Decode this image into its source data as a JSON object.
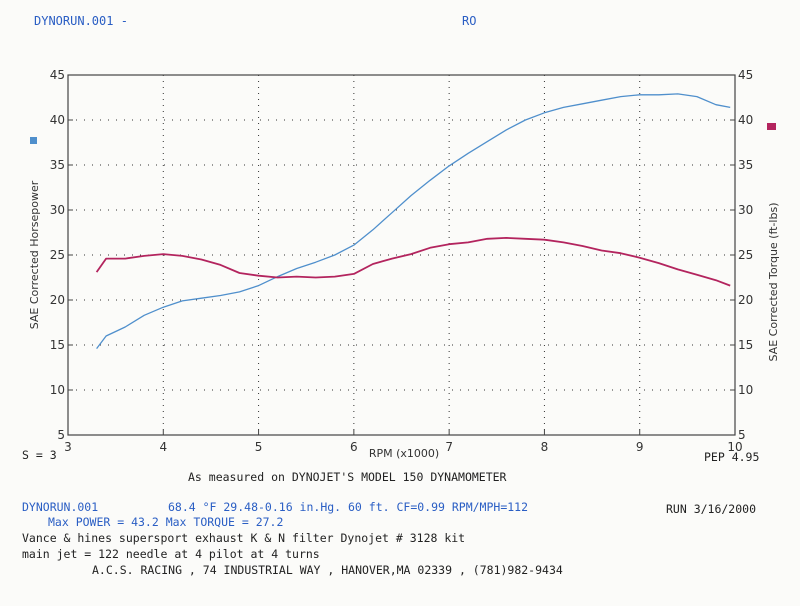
{
  "header": {
    "run_title": "DYNORUN.001 -",
    "run_code": "RO"
  },
  "chart_data": {
    "type": "line",
    "xlabel": "RPM (x1000)",
    "ylabel": "SAE Corrected Horsepower",
    "y2label": "SAE Corrected Torque (ft-lbs)",
    "subtitle": "As measured on DYNOJET'S MODEL 150 DYNAMOMETER",
    "xlim": [
      3,
      10
    ],
    "ylim": [
      5,
      45
    ],
    "y2lim": [
      5,
      45
    ],
    "x_ticks": [
      "3",
      "4",
      "5",
      "6",
      "7",
      "8",
      "9",
      "10"
    ],
    "y_ticks": [
      "5",
      "10",
      "15",
      "20",
      "25",
      "30",
      "35",
      "40",
      "45"
    ],
    "grid": true,
    "colors": {
      "power": "#4f8fcc",
      "torque": "#b3245e"
    },
    "series": [
      {
        "key": "power",
        "axis": "left",
        "points": [
          [
            3.3,
            14.6
          ],
          [
            3.4,
            16.0
          ],
          [
            3.6,
            17.0
          ],
          [
            3.8,
            18.3
          ],
          [
            4.0,
            19.2
          ],
          [
            4.2,
            19.9
          ],
          [
            4.4,
            20.2
          ],
          [
            4.6,
            20.5
          ],
          [
            4.8,
            20.9
          ],
          [
            5.0,
            21.6
          ],
          [
            5.2,
            22.6
          ],
          [
            5.4,
            23.5
          ],
          [
            5.6,
            24.2
          ],
          [
            5.8,
            25.0
          ],
          [
            6.0,
            26.1
          ],
          [
            6.2,
            27.8
          ],
          [
            6.4,
            29.7
          ],
          [
            6.6,
            31.6
          ],
          [
            6.8,
            33.3
          ],
          [
            7.0,
            34.9
          ],
          [
            7.2,
            36.3
          ],
          [
            7.4,
            37.6
          ],
          [
            7.6,
            38.9
          ],
          [
            7.8,
            40.0
          ],
          [
            8.0,
            40.8
          ],
          [
            8.2,
            41.4
          ],
          [
            8.4,
            41.8
          ],
          [
            8.6,
            42.2
          ],
          [
            8.8,
            42.6
          ],
          [
            9.0,
            42.8
          ],
          [
            9.2,
            42.8
          ],
          [
            9.4,
            42.9
          ],
          [
            9.6,
            42.6
          ],
          [
            9.8,
            41.7
          ],
          [
            9.95,
            41.4
          ]
        ]
      },
      {
        "key": "torque",
        "axis": "right",
        "points": [
          [
            3.3,
            23.1
          ],
          [
            3.4,
            24.6
          ],
          [
            3.6,
            24.6
          ],
          [
            3.8,
            24.9
          ],
          [
            4.0,
            25.1
          ],
          [
            4.2,
            24.9
          ],
          [
            4.4,
            24.5
          ],
          [
            4.6,
            23.9
          ],
          [
            4.8,
            23.0
          ],
          [
            5.0,
            22.7
          ],
          [
            5.2,
            22.5
          ],
          [
            5.4,
            22.6
          ],
          [
            5.6,
            22.5
          ],
          [
            5.8,
            22.6
          ],
          [
            6.0,
            22.9
          ],
          [
            6.2,
            24.0
          ],
          [
            6.4,
            24.6
          ],
          [
            6.6,
            25.1
          ],
          [
            6.8,
            25.8
          ],
          [
            7.0,
            26.2
          ],
          [
            7.2,
            26.4
          ],
          [
            7.4,
            26.8
          ],
          [
            7.6,
            26.9
          ],
          [
            7.8,
            26.8
          ],
          [
            8.0,
            26.7
          ],
          [
            8.2,
            26.4
          ],
          [
            8.4,
            26.0
          ],
          [
            8.6,
            25.5
          ],
          [
            8.8,
            25.2
          ],
          [
            9.0,
            24.7
          ],
          [
            9.2,
            24.1
          ],
          [
            9.4,
            23.4
          ],
          [
            9.6,
            22.8
          ],
          [
            9.8,
            22.2
          ],
          [
            9.95,
            21.6
          ]
        ]
      }
    ]
  },
  "footer": {
    "smoothing": "S = 3",
    "pep": "PEP 4.95",
    "dyno_run": "DYNORUN.001",
    "conditions": "68.4 °F  29.48-0.16 in.Hg.  60 ft.  CF=0.99  RPM/MPH=112",
    "run_date": "RUN 3/16/2000",
    "max_values": "Max POWER = 43.2  Max TORQUE = 27.2",
    "notes_1": "Vance & hines supersport exhaust    K & N filter    Dynojet # 3128 kit",
    "notes_2": "main jet = 122     needle at 4     pilot at 4 turns",
    "shop": "A.C.S. RACING , 74 INDUSTRIAL WAY , HANOVER,MA 02339 , (781)982-9434"
  }
}
